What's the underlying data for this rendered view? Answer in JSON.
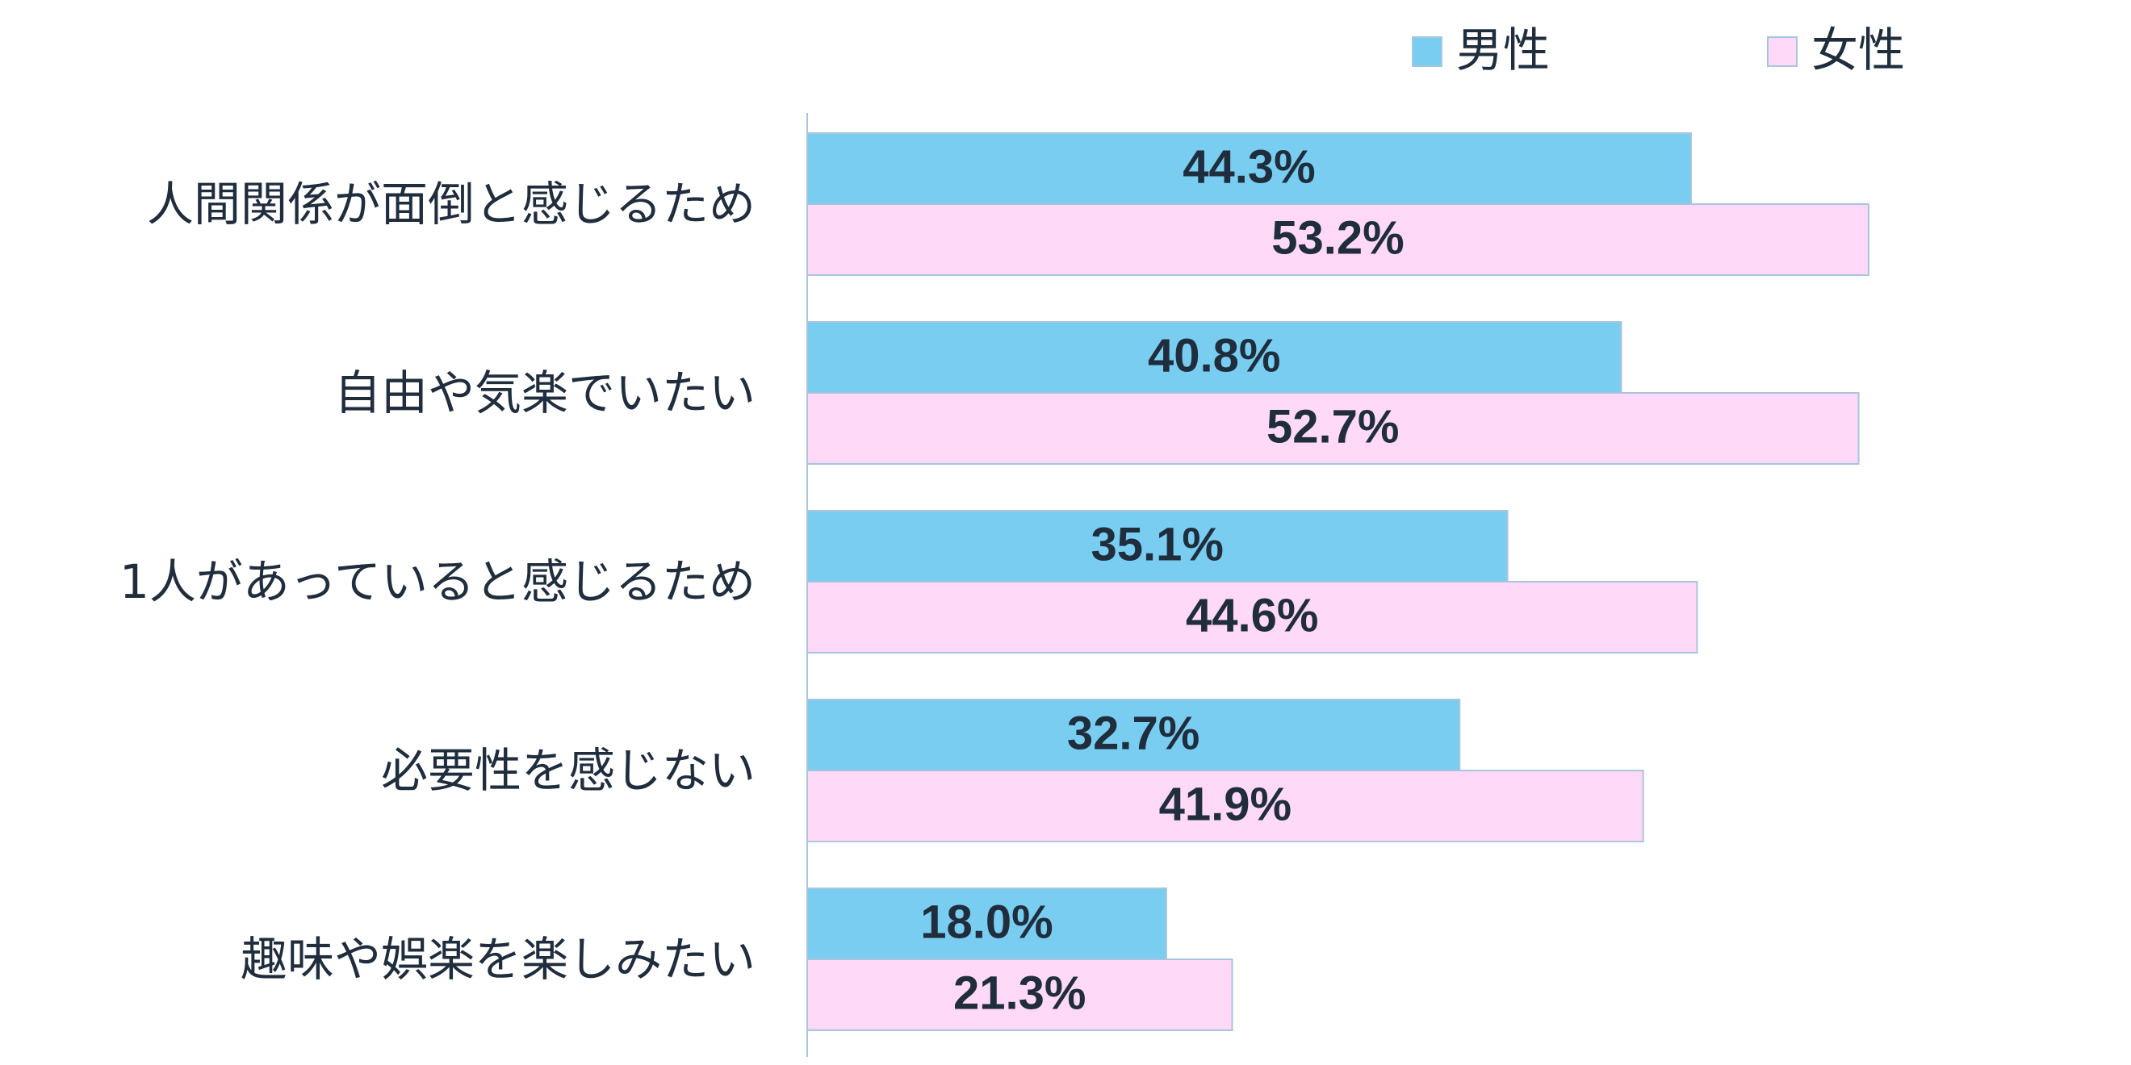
{
  "chart_data": {
    "type": "bar",
    "orientation": "horizontal",
    "categories": [
      "人間関係が面倒と感じるため",
      "自由や気楽でいたい",
      "1人があっていると感じるため",
      "必要性を感じない",
      "趣味や娯楽を楽しみたい"
    ],
    "series": [
      {
        "name": "男性",
        "color": "#78cdf0",
        "values": [
          44.3,
          40.8,
          35.1,
          32.7,
          18.0
        ],
        "labels": [
          "44.3%",
          "40.8%",
          "35.1%",
          "32.7%",
          "18.0%"
        ]
      },
      {
        "name": "女性",
        "color": "#ffd9f7",
        "values": [
          53.2,
          52.7,
          44.6,
          41.9,
          21.3
        ],
        "labels": [
          "53.2%",
          "52.7%",
          "44.6%",
          "41.9%",
          "21.3%"
        ]
      }
    ],
    "xlim": [
      0,
      60
    ],
    "legend_position": "top-right",
    "grid": false,
    "axis_color": "#aac4dc",
    "text_color": "#1f2d3d"
  }
}
